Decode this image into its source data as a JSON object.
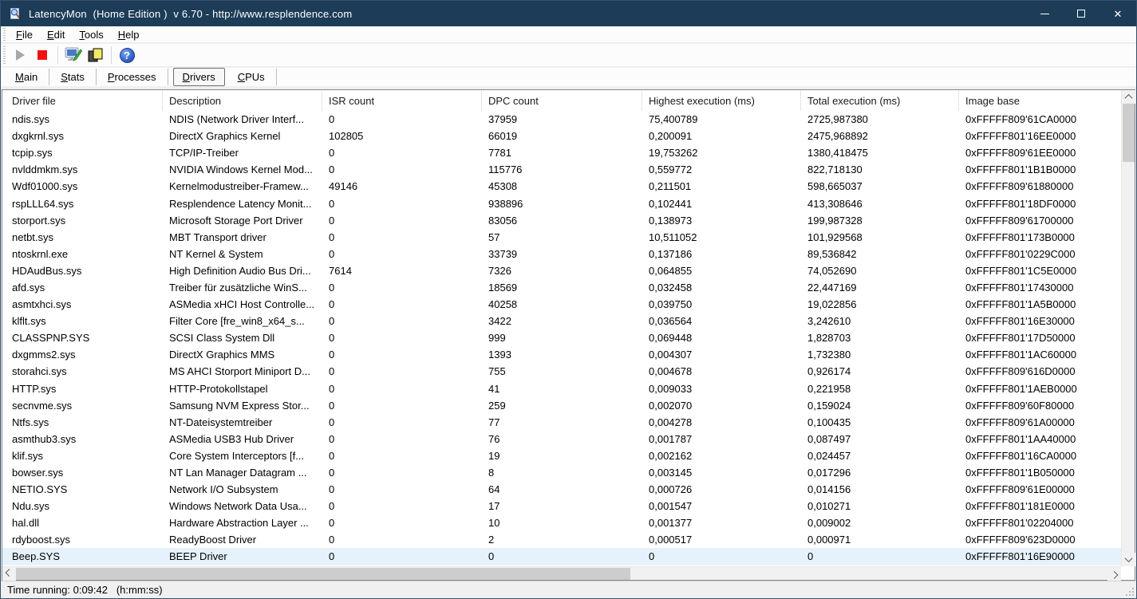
{
  "window": {
    "title": "LatencyMon  (Home Edition )  v 6.70 - http://www.resplendence.com",
    "titlebar_color": "#1d3c58",
    "controls": {
      "close_glyph": "✕"
    }
  },
  "menu": {
    "items": [
      {
        "first": "F",
        "rest": "ile"
      },
      {
        "first": "E",
        "rest": "dit"
      },
      {
        "first": "T",
        "rest": "ools"
      },
      {
        "first": "H",
        "rest": "elp"
      }
    ]
  },
  "toolbar": {
    "icons": {
      "play": "play-triangle-gray-disabled",
      "stop": "red-stop-square",
      "options": "monitor-with-green-pen",
      "copy": "overlapping-pages-yellow",
      "help": "?"
    }
  },
  "tabs": {
    "items": [
      {
        "first": "M",
        "rest": "ain",
        "selected": false
      },
      {
        "first": "S",
        "rest": "tats",
        "selected": false
      },
      {
        "first": "P",
        "rest": "rocesses",
        "selected": false
      },
      {
        "first": "D",
        "rest": "rivers",
        "selected": true
      },
      {
        "first": "C",
        "rest": "PUs",
        "selected": false
      }
    ]
  },
  "table": {
    "columns": [
      "Driver file",
      "Description",
      "ISR count",
      "DPC count",
      "Highest execution (ms)",
      "Total execution (ms)",
      "Image base"
    ],
    "column_keys": [
      "driver",
      "description",
      "isr",
      "dpc",
      "highest",
      "total",
      "image_base"
    ],
    "selected_row_color": "#e6f2fb",
    "rows": [
      {
        "driver": "ndis.sys",
        "description": "NDIS (Network Driver Interf...",
        "isr": "0",
        "dpc": "37959",
        "highest": "75,400789",
        "total": "2725,987380",
        "image_base": "0xFFFFF809'61CA0000",
        "selected": false
      },
      {
        "driver": "dxgkrnl.sys",
        "description": "DirectX Graphics Kernel",
        "isr": "102805",
        "dpc": "66019",
        "highest": "0,200091",
        "total": "2475,968892",
        "image_base": "0xFFFFF801'16EE0000",
        "selected": false
      },
      {
        "driver": "tcpip.sys",
        "description": "TCP/IP-Treiber",
        "isr": "0",
        "dpc": "7781",
        "highest": "19,753262",
        "total": "1380,418475",
        "image_base": "0xFFFFF809'61EE0000",
        "selected": false
      },
      {
        "driver": "nvlddmkm.sys",
        "description": "NVIDIA Windows Kernel Mod...",
        "isr": "0",
        "dpc": "115776",
        "highest": "0,559772",
        "total": "822,718130",
        "image_base": "0xFFFFF801'1B1B0000",
        "selected": false
      },
      {
        "driver": "Wdf01000.sys",
        "description": "Kernelmodustreiber-Framew...",
        "isr": "49146",
        "dpc": "45308",
        "highest": "0,211501",
        "total": "598,665037",
        "image_base": "0xFFFFF809'61880000",
        "selected": false
      },
      {
        "driver": "rspLLL64.sys",
        "description": "Resplendence Latency Monit...",
        "isr": "0",
        "dpc": "938896",
        "highest": "0,102441",
        "total": "413,308646",
        "image_base": "0xFFFFF801'18DF0000",
        "selected": false
      },
      {
        "driver": "storport.sys",
        "description": "Microsoft Storage Port Driver",
        "isr": "0",
        "dpc": "83056",
        "highest": "0,138973",
        "total": "199,987328",
        "image_base": "0xFFFFF809'61700000",
        "selected": false
      },
      {
        "driver": "netbt.sys",
        "description": "MBT Transport driver",
        "isr": "0",
        "dpc": "57",
        "highest": "10,511052",
        "total": "101,929568",
        "image_base": "0xFFFFF801'173B0000",
        "selected": false
      },
      {
        "driver": "ntoskrnl.exe",
        "description": "NT Kernel & System",
        "isr": "0",
        "dpc": "33739",
        "highest": "0,137186",
        "total": "89,536842",
        "image_base": "0xFFFFF801'0229C000",
        "selected": false
      },
      {
        "driver": "HDAudBus.sys",
        "description": "High Definition Audio Bus Dri...",
        "isr": "7614",
        "dpc": "7326",
        "highest": "0,064855",
        "total": "74,052690",
        "image_base": "0xFFFFF801'1C5E0000",
        "selected": false
      },
      {
        "driver": "afd.sys",
        "description": "Treiber für zusätzliche WinS...",
        "isr": "0",
        "dpc": "18569",
        "highest": "0,032458",
        "total": "22,447169",
        "image_base": "0xFFFFF801'17430000",
        "selected": false
      },
      {
        "driver": "asmtxhci.sys",
        "description": "ASMedia xHCI Host Controlle...",
        "isr": "0",
        "dpc": "40258",
        "highest": "0,039750",
        "total": "19,022856",
        "image_base": "0xFFFFF801'1A5B0000",
        "selected": false
      },
      {
        "driver": "klflt.sys",
        "description": "Filter Core [fre_win8_x64_s...",
        "isr": "0",
        "dpc": "3422",
        "highest": "0,036564",
        "total": "3,242610",
        "image_base": "0xFFFFF801'16E30000",
        "selected": false
      },
      {
        "driver": "CLASSPNP.SYS",
        "description": "SCSI Class System Dll",
        "isr": "0",
        "dpc": "999",
        "highest": "0,069448",
        "total": "1,828703",
        "image_base": "0xFFFFF801'17D50000",
        "selected": false
      },
      {
        "driver": "dxgmms2.sys",
        "description": "DirectX Graphics MMS",
        "isr": "0",
        "dpc": "1393",
        "highest": "0,004307",
        "total": "1,732380",
        "image_base": "0xFFFFF801'1AC60000",
        "selected": false
      },
      {
        "driver": "storahci.sys",
        "description": "MS AHCI Storport Miniport D...",
        "isr": "0",
        "dpc": "755",
        "highest": "0,004678",
        "total": "0,926174",
        "image_base": "0xFFFFF809'616D0000",
        "selected": false
      },
      {
        "driver": "HTTP.sys",
        "description": "HTTP-Protokollstapel",
        "isr": "0",
        "dpc": "41",
        "highest": "0,009033",
        "total": "0,221958",
        "image_base": "0xFFFFF801'1AEB0000",
        "selected": false
      },
      {
        "driver": "secnvme.sys",
        "description": "Samsung NVM Express Stor...",
        "isr": "0",
        "dpc": "259",
        "highest": "0,002070",
        "total": "0,159024",
        "image_base": "0xFFFFF809'60F80000",
        "selected": false
      },
      {
        "driver": "Ntfs.sys",
        "description": "NT-Dateisystemtreiber",
        "isr": "0",
        "dpc": "77",
        "highest": "0,004278",
        "total": "0,100435",
        "image_base": "0xFFFFF809'61A00000",
        "selected": false
      },
      {
        "driver": "asmthub3.sys",
        "description": "ASMedia USB3 Hub Driver",
        "isr": "0",
        "dpc": "76",
        "highest": "0,001787",
        "total": "0,087497",
        "image_base": "0xFFFFF801'1AA40000",
        "selected": false
      },
      {
        "driver": "klif.sys",
        "description": "Core System Interceptors [f...",
        "isr": "0",
        "dpc": "19",
        "highest": "0,002162",
        "total": "0,024457",
        "image_base": "0xFFFFF801'16CA0000",
        "selected": false
      },
      {
        "driver": "bowser.sys",
        "description": "NT Lan Manager Datagram ...",
        "isr": "0",
        "dpc": "8",
        "highest": "0,003145",
        "total": "0,017296",
        "image_base": "0xFFFFF801'1B050000",
        "selected": false
      },
      {
        "driver": "NETIO.SYS",
        "description": "Network I/O Subsystem",
        "isr": "0",
        "dpc": "64",
        "highest": "0,000726",
        "total": "0,014156",
        "image_base": "0xFFFFF809'61E00000",
        "selected": false
      },
      {
        "driver": "Ndu.sys",
        "description": "Windows Network Data Usa...",
        "isr": "0",
        "dpc": "17",
        "highest": "0,001547",
        "total": "0,010271",
        "image_base": "0xFFFFF801'181E0000",
        "selected": false
      },
      {
        "driver": "hal.dll",
        "description": "Hardware Abstraction Layer ...",
        "isr": "0",
        "dpc": "10",
        "highest": "0,001377",
        "total": "0,009002",
        "image_base": "0xFFFFF801'02204000",
        "selected": false
      },
      {
        "driver": "rdyboost.sys",
        "description": "ReadyBoost Driver",
        "isr": "0",
        "dpc": "2",
        "highest": "0,000517",
        "total": "0,000971",
        "image_base": "0xFFFFF809'623D0000",
        "selected": false
      },
      {
        "driver": "Beep.SYS",
        "description": "BEEP Driver",
        "isr": "0",
        "dpc": "0",
        "highest": "0",
        "total": "0",
        "image_base": "0xFFFFF801'16E90000",
        "selected": true
      }
    ]
  },
  "status_bar": {
    "text": "Time running: 0:09:42   (h:mm:ss)"
  }
}
